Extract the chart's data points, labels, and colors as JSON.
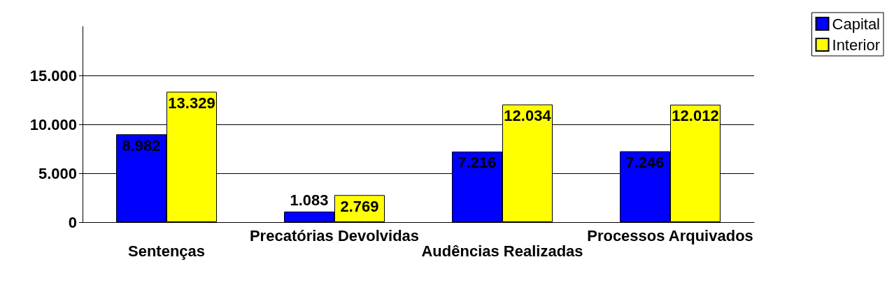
{
  "chart_data": {
    "type": "bar",
    "categories": [
      "Sentenças",
      "Precatórias Devolvidas",
      "Audências Realizadas",
      "Processos Arquivados"
    ],
    "series": [
      {
        "name": "Capital",
        "color": "#0000ff",
        "values": [
          8982,
          1083,
          7216,
          7246
        ],
        "value_labels": [
          "8.982",
          "1.083",
          "7.216",
          "7.246"
        ]
      },
      {
        "name": "Interior",
        "color": "#ffff00",
        "values": [
          13329,
          2769,
          12034,
          12012
        ],
        "value_labels": [
          "13.329",
          "2.769",
          "12.034",
          "12.012"
        ]
      }
    ],
    "ylim": [
      0,
      20000
    ],
    "yticks": [
      {
        "value": 0,
        "label": "0"
      },
      {
        "value": 5000,
        "label": "5.000"
      },
      {
        "value": 10000,
        "label": "10.000"
      },
      {
        "value": 15000,
        "label": "15.000"
      }
    ],
    "grid": "y",
    "legend": "top right"
  }
}
